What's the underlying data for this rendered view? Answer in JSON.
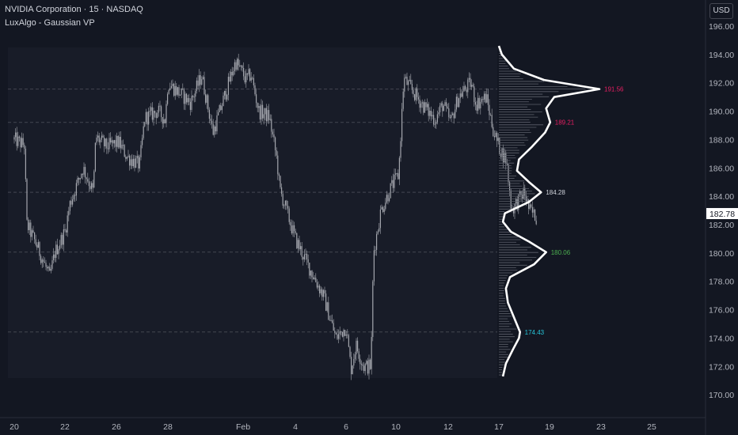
{
  "header": {
    "symbol_title": "NVIDIA Corporation · 15 · NASDAQ",
    "indicator_name": "LuxAlgo - Gaussian VP"
  },
  "price_axis": {
    "currency": "USD",
    "current_price_label": "182.78"
  },
  "colors": {
    "background": "#131722",
    "candles": "#a3a6ad",
    "profile_curve": "#ffffff",
    "histogram": "#5d606b",
    "poc_level": "#e91e63",
    "high_level": "#e91e63",
    "mid_level": "#d1d4dc",
    "low_level": "#4caf50",
    "bottom_level": "#26c6da"
  },
  "chart_data": {
    "type": "candlestick",
    "title": "NVIDIA Corporation · 15 · NASDAQ",
    "indicator": "LuxAlgo - Gaussian VP",
    "ylim": [
      169,
      197.5
    ],
    "yticks": [
      170,
      172,
      174,
      176,
      178,
      180,
      182,
      184,
      186,
      188,
      190,
      192,
      194,
      196
    ],
    "xticks": [
      {
        "label": "20",
        "pos": 0
      },
      {
        "label": "22",
        "pos": 1
      },
      {
        "label": "26",
        "pos": 2
      },
      {
        "label": "28",
        "pos": 3
      },
      {
        "label": "Feb",
        "pos": 4
      },
      {
        "label": "4",
        "pos": 5
      },
      {
        "label": "6",
        "pos": 6
      },
      {
        "label": "10",
        "pos": 7
      },
      {
        "label": "12",
        "pos": 8
      },
      {
        "label": "17",
        "pos": 9
      },
      {
        "label": "19",
        "pos": 10
      },
      {
        "label": "23",
        "pos": 11
      },
      {
        "label": "25",
        "pos": 12
      }
    ],
    "last_price": 182.78,
    "price_path": [
      [
        0,
        188.0
      ],
      [
        0.2,
        187.6
      ],
      [
        0.25,
        182.0
      ],
      [
        0.45,
        180.5
      ],
      [
        0.7,
        178.3
      ],
      [
        0.8,
        180.0
      ],
      [
        1.0,
        181.5
      ],
      [
        1.1,
        183.5
      ],
      [
        1.25,
        185.0
      ],
      [
        1.35,
        186.0
      ],
      [
        1.55,
        184.3
      ],
      [
        1.6,
        188.2
      ],
      [
        1.8,
        187.5
      ],
      [
        2.05,
        187.8
      ],
      [
        2.2,
        186.8
      ],
      [
        2.45,
        186.2
      ],
      [
        2.55,
        189.5
      ],
      [
        2.8,
        190.0
      ],
      [
        2.95,
        189.4
      ],
      [
        3.0,
        192.0
      ],
      [
        3.3,
        190.6
      ],
      [
        3.45,
        192.5
      ],
      [
        3.6,
        188.5
      ],
      [
        3.75,
        191.0
      ],
      [
        3.9,
        193.5
      ],
      [
        4.05,
        192.2
      ],
      [
        4.15,
        192.6
      ],
      [
        4.3,
        190.0
      ],
      [
        4.5,
        189.6
      ],
      [
        4.65,
        186.5
      ],
      [
        4.7,
        184.5
      ],
      [
        5.0,
        181.0
      ],
      [
        5.2,
        179.5
      ],
      [
        5.55,
        177.0
      ],
      [
        5.8,
        174.0
      ],
      [
        6.0,
        174.8
      ],
      [
        6.1,
        171.8
      ],
      [
        6.2,
        173.5
      ],
      [
        6.35,
        172.0
      ],
      [
        6.5,
        172.0
      ],
      [
        6.55,
        180.0
      ],
      [
        6.7,
        183.0
      ],
      [
        6.9,
        184.6
      ],
      [
        7.05,
        185.5
      ],
      [
        7.15,
        192.3
      ],
      [
        7.3,
        191.5
      ],
      [
        7.5,
        190.5
      ],
      [
        7.75,
        189.4
      ],
      [
        7.9,
        190.5
      ],
      [
        8.05,
        189.2
      ],
      [
        8.2,
        191.0
      ],
      [
        8.45,
        192.0
      ],
      [
        8.55,
        190.5
      ],
      [
        8.75,
        191.0
      ],
      [
        8.9,
        188.5
      ],
      [
        9.0,
        187.5
      ],
      [
        9.15,
        186.5
      ],
      [
        9.25,
        183.0
      ],
      [
        9.5,
        184.3
      ],
      [
        9.6,
        183.0
      ],
      [
        9.75,
        182.5
      ]
    ],
    "profile_curve": [
      [
        171.3,
        0.04
      ],
      [
        172.2,
        0.07
      ],
      [
        173.2,
        0.14
      ],
      [
        174.0,
        0.2
      ],
      [
        174.43,
        0.21
      ],
      [
        175.3,
        0.16
      ],
      [
        176.5,
        0.09
      ],
      [
        177.5,
        0.07
      ],
      [
        178.3,
        0.11
      ],
      [
        179.2,
        0.35
      ],
      [
        180.06,
        0.47
      ],
      [
        180.8,
        0.3
      ],
      [
        181.5,
        0.12
      ],
      [
        182.2,
        0.04
      ],
      [
        182.8,
        0.06
      ],
      [
        183.6,
        0.3
      ],
      [
        184.28,
        0.42
      ],
      [
        185.0,
        0.3
      ],
      [
        185.8,
        0.18
      ],
      [
        186.6,
        0.2
      ],
      [
        187.5,
        0.33
      ],
      [
        188.5,
        0.46
      ],
      [
        189.21,
        0.51
      ],
      [
        190.2,
        0.47
      ],
      [
        191.0,
        0.55
      ],
      [
        191.56,
        1.0
      ],
      [
        192.2,
        0.45
      ],
      [
        193.0,
        0.15
      ],
      [
        194.0,
        0.03
      ],
      [
        194.6,
        0.0
      ]
    ],
    "levels": [
      {
        "price": 191.56,
        "label": "191.56",
        "color": "#e91e63"
      },
      {
        "price": 189.21,
        "label": "189.21",
        "color": "#e91e63"
      },
      {
        "price": 184.28,
        "label": "184.28",
        "color": "#d1d4dc"
      },
      {
        "price": 180.06,
        "label": "180.06",
        "color": "#4caf50"
      },
      {
        "price": 174.43,
        "label": "174.43",
        "color": "#26c6da"
      }
    ]
  }
}
